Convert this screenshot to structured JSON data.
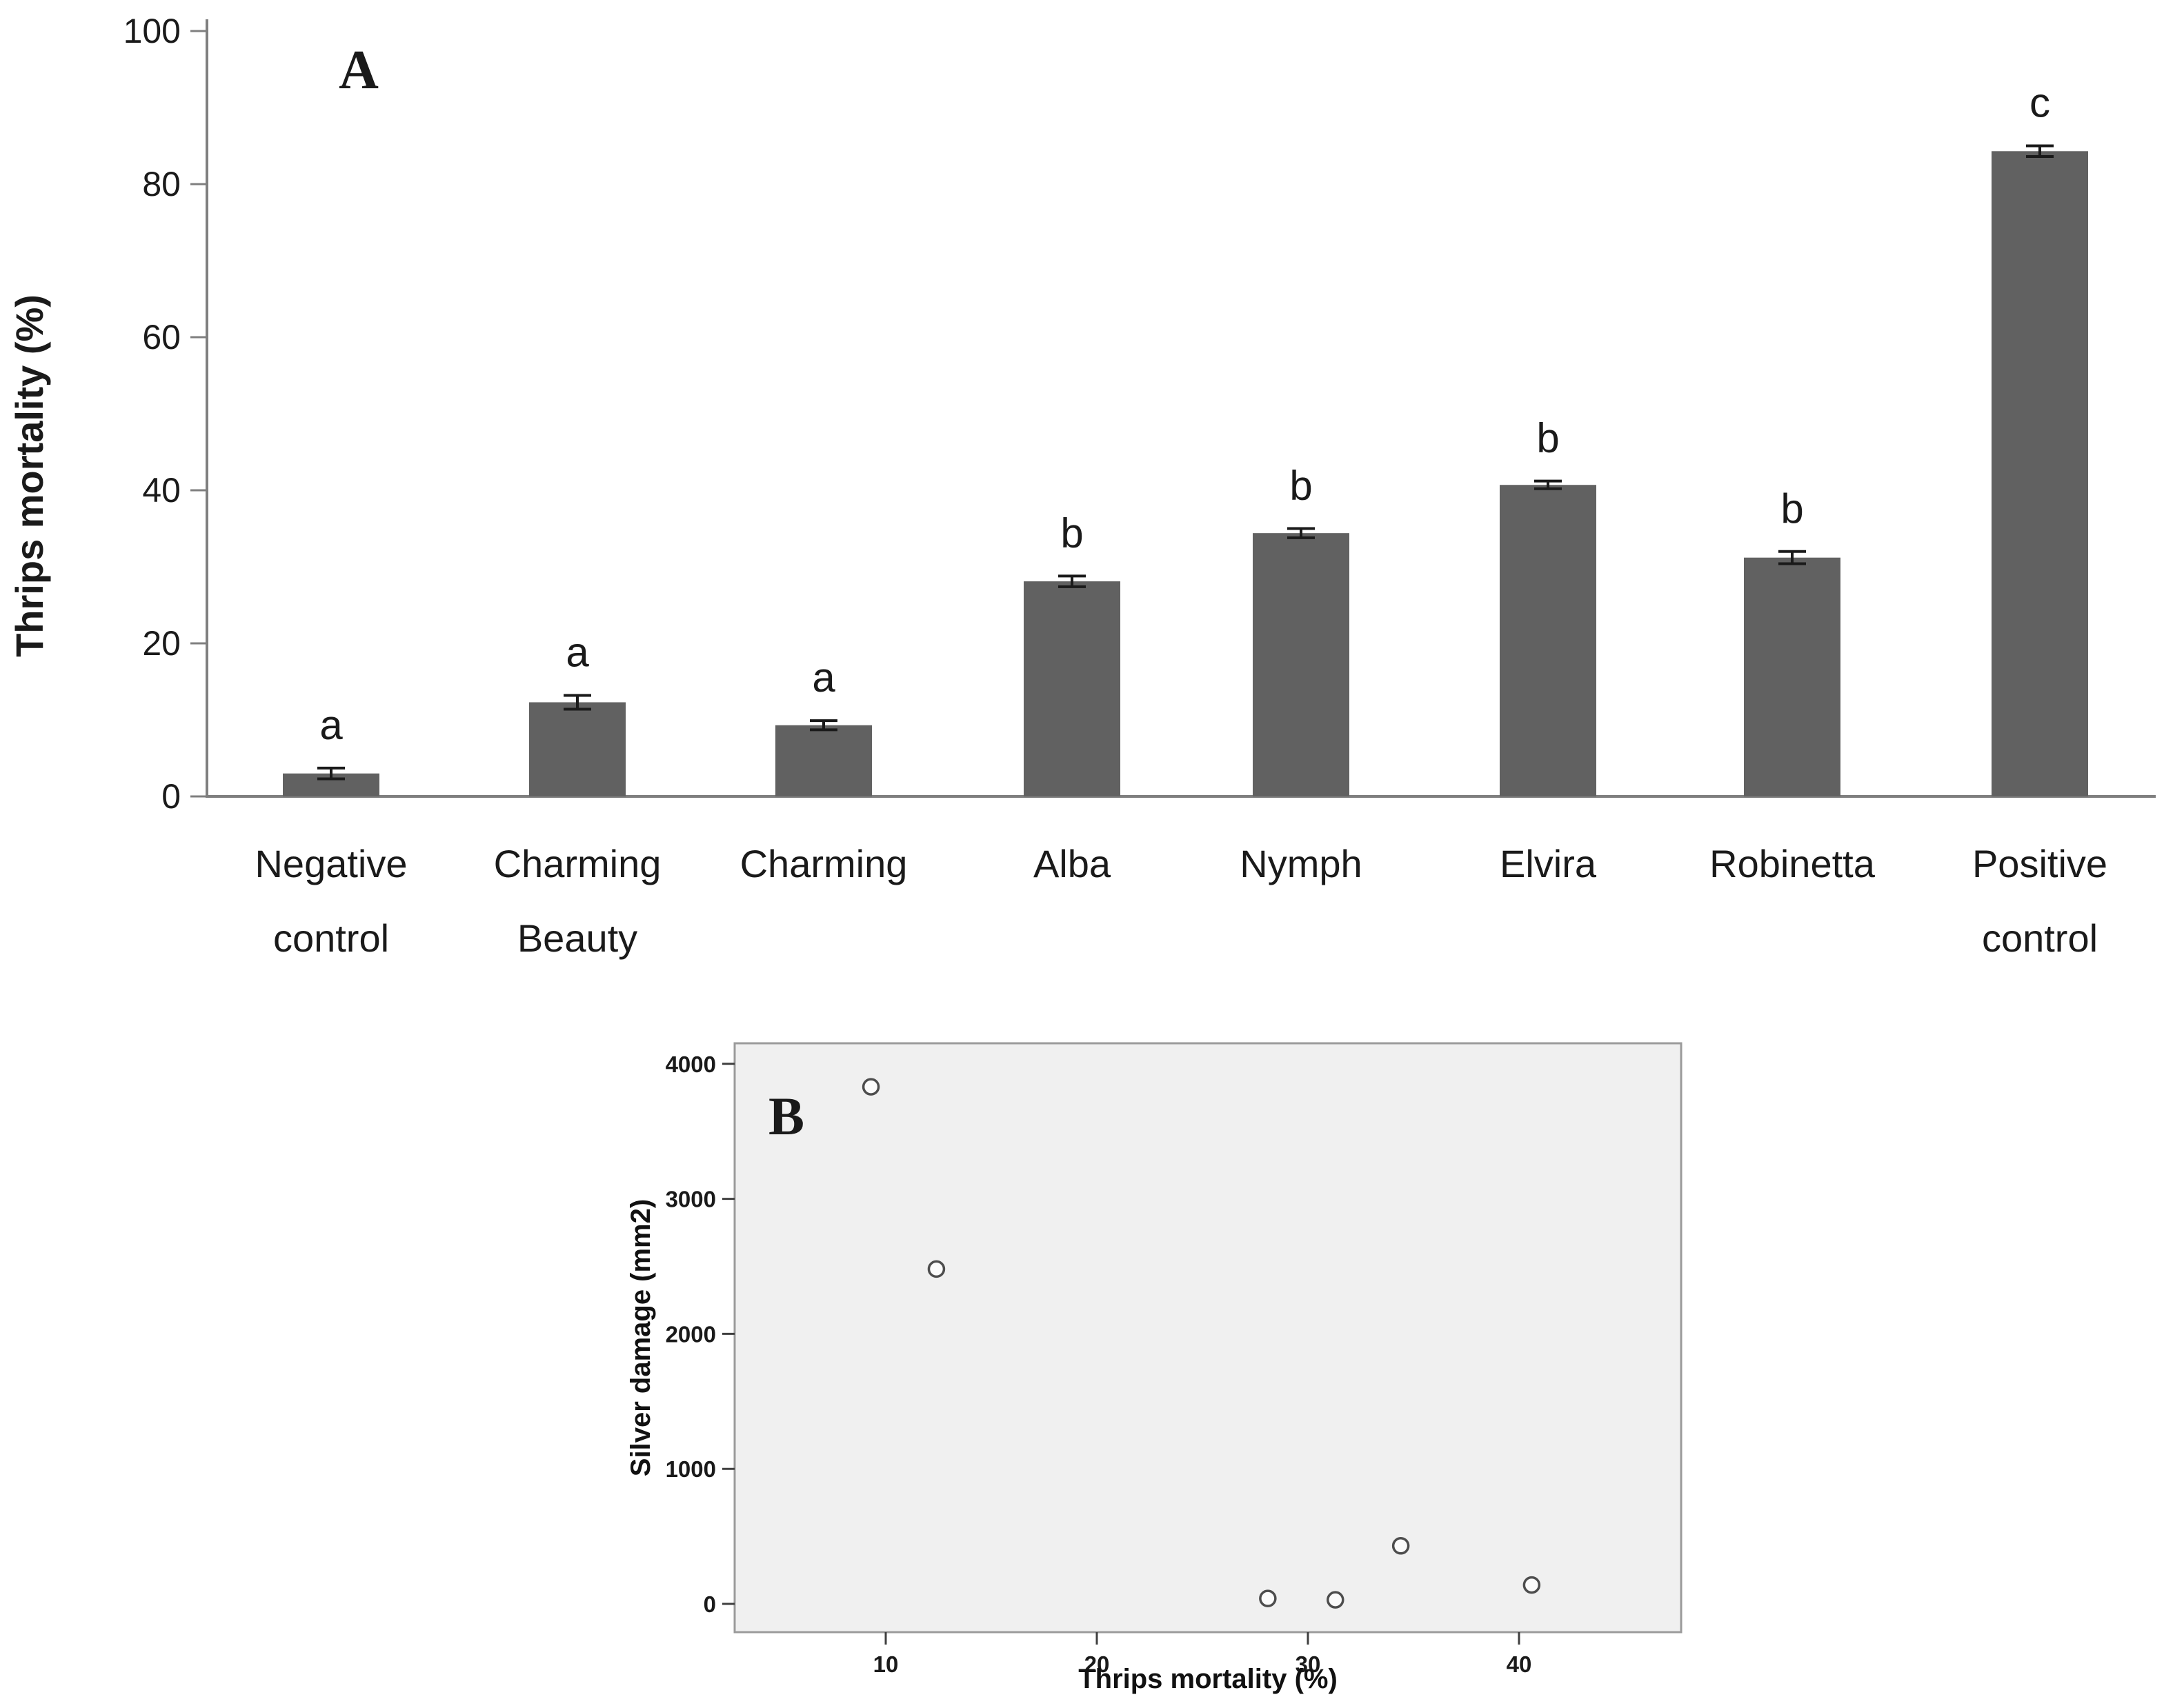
{
  "figure": {
    "panel_a_label": "A",
    "panel_b_label": "B"
  },
  "chart_data": [
    {
      "type": "bar",
      "panel": "A",
      "title": "",
      "ylabel": "Thrips mortality (%)",
      "ylim": [
        0,
        100
      ],
      "yticks": [
        0,
        20,
        40,
        60,
        80,
        100
      ],
      "grid": false,
      "legend": "none",
      "bar_color": "#616161",
      "categories": [
        "Negative control",
        "Charming Beauty",
        "Charming",
        "Alba",
        "Nymph",
        "Elvira",
        "Robinetta",
        "Positive control"
      ],
      "category_lines": [
        [
          "Negative",
          "control"
        ],
        [
          "Charming",
          "Beauty"
        ],
        [
          "Charming"
        ],
        [
          "Alba"
        ],
        [
          "Nymph"
        ],
        [
          "Elvira"
        ],
        [
          "Robinetta"
        ],
        [
          "Positive",
          "control"
        ]
      ],
      "values": [
        3.0,
        12.3,
        9.3,
        28.1,
        34.4,
        40.7,
        31.2,
        84.3
      ],
      "errors": [
        0.7,
        0.9,
        0.6,
        0.7,
        0.6,
        0.5,
        0.8,
        0.7
      ],
      "sig_letters": [
        "a",
        "a",
        "a",
        "b",
        "b",
        "b",
        "b",
        "c"
      ]
    },
    {
      "type": "scatter",
      "panel": "B",
      "title": "",
      "xlabel": "Thrips mortality (%)",
      "ylabel": "Silver damage (mm2)",
      "xlim": [
        2.5,
        47.5
      ],
      "ylim": [
        -210,
        4150
      ],
      "xticks": [
        10,
        20,
        30,
        40
      ],
      "yticks": [
        0,
        1000,
        2000,
        3000,
        4000
      ],
      "grid": false,
      "legend": "none",
      "plot_bg": "#f0f0f0",
      "points": [
        {
          "x": 9.3,
          "y": 3830
        },
        {
          "x": 12.4,
          "y": 2480
        },
        {
          "x": 28.1,
          "y": 40
        },
        {
          "x": 31.3,
          "y": 30
        },
        {
          "x": 34.4,
          "y": 430
        },
        {
          "x": 40.6,
          "y": 140
        }
      ]
    }
  ]
}
